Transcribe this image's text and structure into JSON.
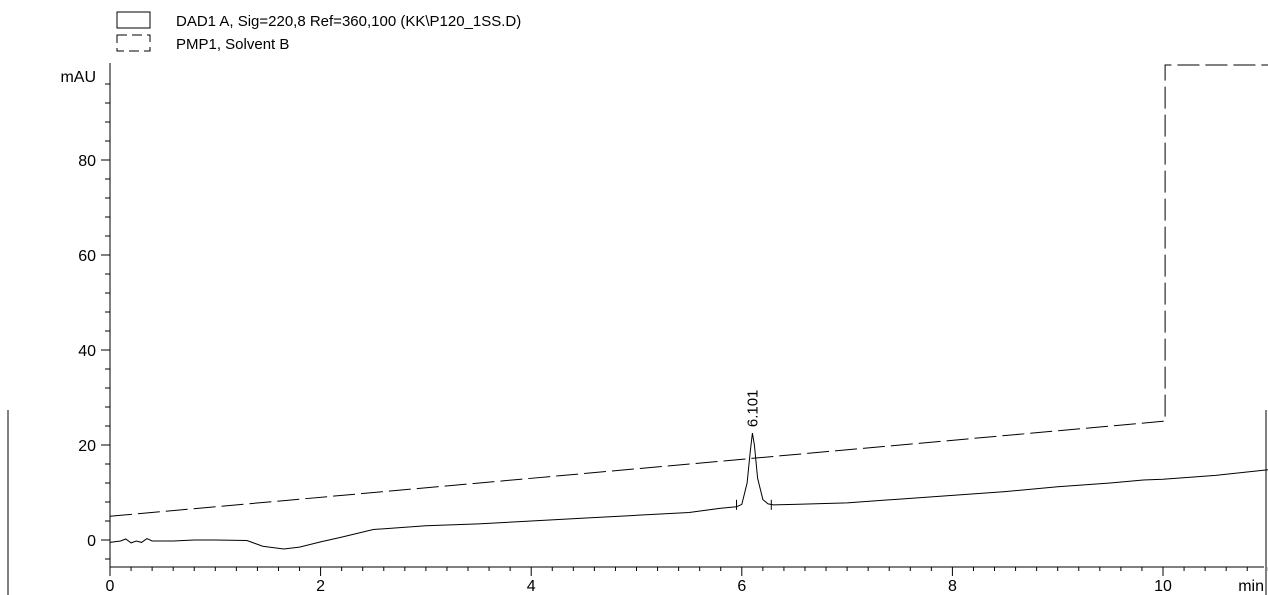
{
  "legend": [
    {
      "label": "DAD1 A, Sig=220,8 Ref=360,100 (KK\\P120_1SS.D)",
      "style": "solid"
    },
    {
      "label": "PMP1, Solvent B",
      "style": "dashed"
    }
  ],
  "chart_data": {
    "type": "line",
    "ylabel": "mAU",
    "xlabel": "min",
    "xlim": [
      0,
      11
    ],
    "ylim": [
      -5,
      100
    ],
    "x_ticks": [
      0,
      2,
      4,
      6,
      8,
      10
    ],
    "x_tick_labels": [
      "0",
      "2",
      "4",
      "6",
      "8",
      "10"
    ],
    "y_ticks": [
      0,
      20,
      40,
      60,
      80
    ],
    "y_tick_labels": [
      "0",
      "20",
      "40",
      "60",
      "80"
    ],
    "grid": false,
    "legend_position": "top-left",
    "series": [
      {
        "name": "DAD1 A, Sig=220,8 Ref=360,100 (KK\\P120_1SS.D)",
        "style": "solid",
        "x": [
          0,
          0.1,
          0.15,
          0.2,
          0.25,
          0.3,
          0.35,
          0.4,
          0.6,
          0.8,
          1.0,
          1.3,
          1.45,
          1.65,
          1.8,
          2.0,
          2.2,
          2.5,
          3.0,
          3.5,
          4.0,
          4.5,
          5.0,
          5.5,
          5.8,
          5.95,
          5.98,
          6.0,
          6.05,
          6.08,
          6.101,
          6.12,
          6.15,
          6.2,
          6.25,
          6.3,
          6.5,
          7.0,
          7.5,
          8.0,
          8.5,
          9.0,
          9.5,
          9.8,
          10.0,
          10.5,
          11.0
        ],
        "y": [
          -0.5,
          -0.2,
          0.2,
          -0.6,
          -0.2,
          -0.5,
          0.3,
          -0.2,
          -0.2,
          0,
          0,
          -0.1,
          -1.3,
          -1.9,
          -1.5,
          -0.4,
          0.6,
          2.2,
          3.0,
          3.4,
          4.0,
          4.6,
          5.2,
          5.8,
          6.7,
          7.0,
          7.3,
          7.5,
          12.0,
          18.5,
          22.5,
          20.0,
          13.0,
          8.5,
          7.6,
          7.4,
          7.5,
          7.8,
          8.6,
          9.4,
          10.2,
          11.2,
          12.0,
          12.6,
          12.8,
          13.6,
          14.8
        ]
      },
      {
        "name": "PMP1, Solvent B",
        "style": "dashed",
        "x": [
          0,
          10.0,
          10.02,
          10.02,
          11.0
        ],
        "y": [
          5,
          25,
          25,
          100,
          100
        ]
      }
    ],
    "annotations": [
      {
        "text": "6.101",
        "x": 6.101,
        "y": 22.5
      }
    ]
  }
}
